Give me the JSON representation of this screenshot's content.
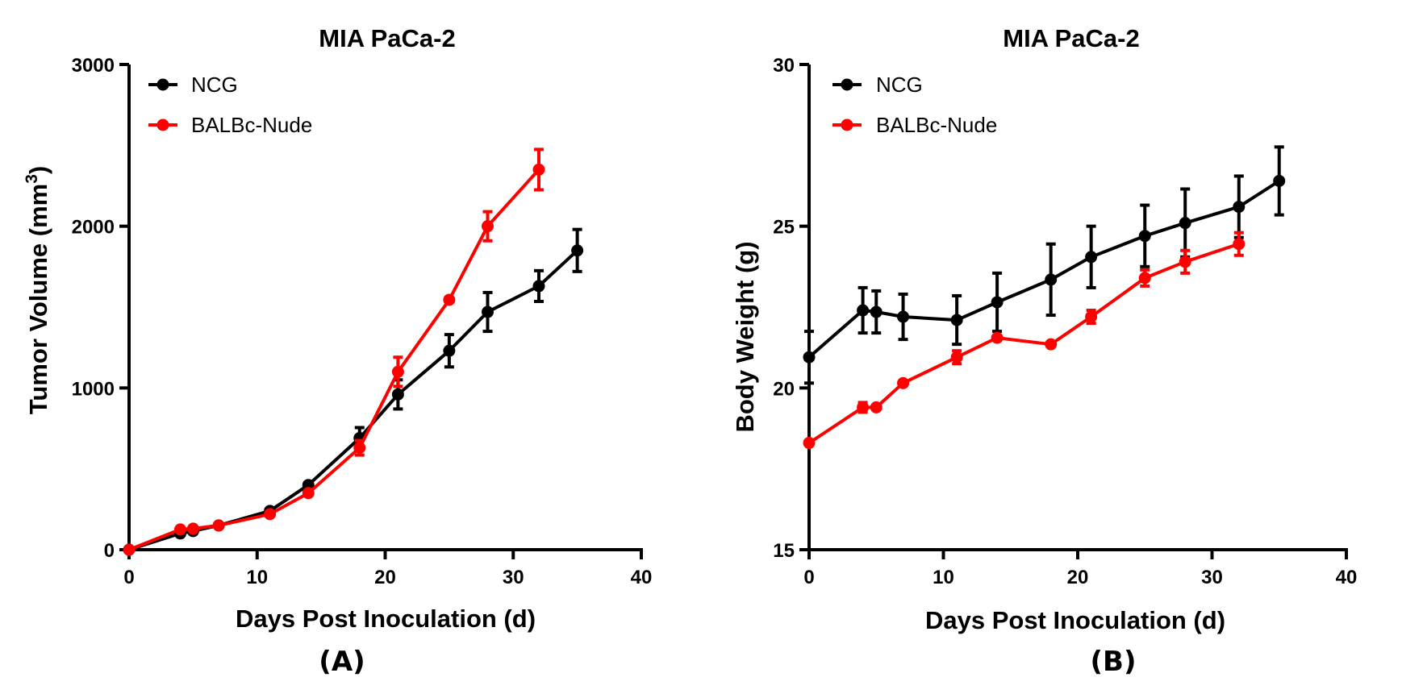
{
  "colors": {
    "ncg": "#000000",
    "nude": "#ff0000"
  },
  "panel_labels": [
    "(A)",
    "(B)"
  ],
  "chart_data": [
    {
      "type": "line",
      "title": "MIA PaCa-2",
      "xlabel": "Days Post Inoculation (d)",
      "ylabel_main": "Tumor Volume (mm",
      "ylabel_sup": "3",
      "ylabel_end": ")",
      "xlim": [
        0,
        40
      ],
      "ylim": [
        0,
        3000
      ],
      "xticks": [
        0,
        10,
        20,
        30,
        40
      ],
      "yticks": [
        0,
        1000,
        2000,
        3000
      ],
      "xtick_labels": [
        "0",
        "10",
        "20",
        "30",
        "40"
      ],
      "ytick_labels": [
        "0",
        "1000",
        "2000",
        "3000"
      ],
      "legend": [
        "NCG",
        "BALBc-Nude"
      ],
      "series": [
        {
          "name": "NCG",
          "color": "#000000",
          "x": [
            0,
            4,
            5,
            7,
            11,
            14,
            18,
            21,
            25,
            28,
            32,
            35
          ],
          "y": [
            0,
            100,
            115,
            150,
            240,
            400,
            690,
            960,
            1230,
            1470,
            1630,
            1850
          ],
          "err": [
            0,
            0,
            0,
            0,
            0,
            0,
            65,
            90,
            100,
            120,
            95,
            130
          ]
        },
        {
          "name": "BALBc-Nude",
          "color": "#ff0000",
          "x": [
            0,
            4,
            5,
            7,
            11,
            14,
            18,
            21,
            25,
            28,
            32
          ],
          "y": [
            0,
            125,
            130,
            150,
            220,
            350,
            630,
            1100,
            1545,
            2000,
            2350
          ],
          "err": [
            0,
            0,
            0,
            0,
            0,
            0,
            45,
            90,
            0,
            90,
            125
          ]
        }
      ]
    },
    {
      "type": "line",
      "title": "MIA PaCa-2",
      "xlabel": "Days Post Inoculation (d)",
      "ylabel_main": "Body Weight (g)",
      "ylabel_sup": "",
      "ylabel_end": "",
      "xlim": [
        0,
        40
      ],
      "ylim": [
        15,
        30
      ],
      "xticks": [
        0,
        10,
        20,
        30,
        40
      ],
      "yticks": [
        15,
        20,
        25,
        30
      ],
      "xtick_labels": [
        "0",
        "10",
        "20",
        "30",
        "40"
      ],
      "ytick_labels": [
        "15",
        "20",
        "25",
        "30"
      ],
      "legend": [
        "NCG",
        "BALBc-Nude"
      ],
      "series": [
        {
          "name": "NCG",
          "color": "#000000",
          "x": [
            0,
            4,
            5,
            7,
            11,
            14,
            18,
            21,
            25,
            28,
            32,
            35
          ],
          "y": [
            20.95,
            22.4,
            22.35,
            22.2,
            22.1,
            22.65,
            23.35,
            24.05,
            24.7,
            25.1,
            25.6,
            26.4
          ],
          "err": [
            0.8,
            0.7,
            0.65,
            0.7,
            0.75,
            0.9,
            1.1,
            0.95,
            0.95,
            1.05,
            0.95,
            1.05
          ]
        },
        {
          "name": "BALBc-Nude",
          "color": "#ff0000",
          "x": [
            0,
            4,
            5,
            7,
            11,
            14,
            18,
            21,
            25,
            28,
            32
          ],
          "y": [
            18.3,
            19.4,
            19.4,
            20.15,
            20.95,
            21.55,
            21.35,
            22.2,
            23.4,
            23.9,
            24.45
          ],
          "err": [
            0,
            0.15,
            0,
            0,
            0.2,
            0,
            0,
            0.2,
            0.25,
            0.35,
            0.35
          ]
        }
      ]
    }
  ]
}
